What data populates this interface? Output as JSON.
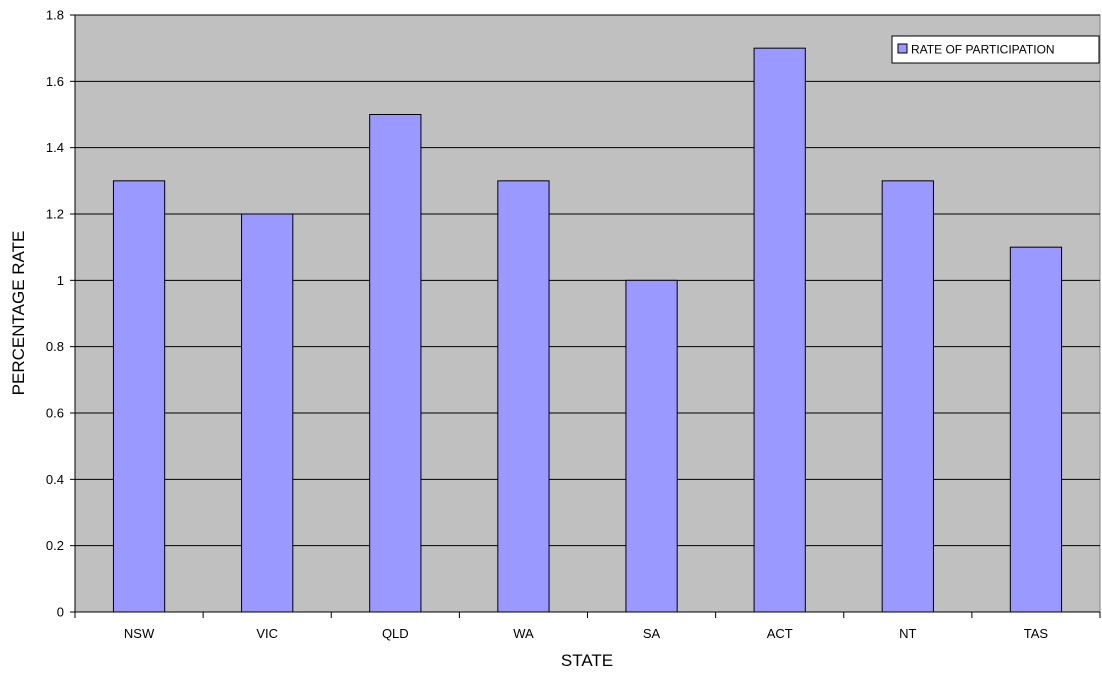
{
  "chart_data": {
    "type": "bar",
    "title": "",
    "xlabel": "STATE",
    "ylabel": "PERCENTAGE RATE",
    "categories": [
      "NSW",
      "VIC",
      "QLD",
      "WA",
      "SA",
      "ACT",
      "NT",
      "TAS"
    ],
    "series": [
      {
        "name": "RATE OF PARTICIPATION",
        "values": [
          1.3,
          1.2,
          1.5,
          1.3,
          1.0,
          1.7,
          1.3,
          1.1
        ],
        "color": "#9999ff"
      }
    ],
    "ylim": [
      0,
      1.8
    ],
    "yticks": [
      "0",
      "0.2",
      "0.4",
      "0.6",
      "0.8",
      "1",
      "1.2",
      "1.4",
      "1.6",
      "1.8"
    ],
    "grid": true,
    "legend_position": "top-right",
    "plot_background": "#c0c0c0"
  }
}
